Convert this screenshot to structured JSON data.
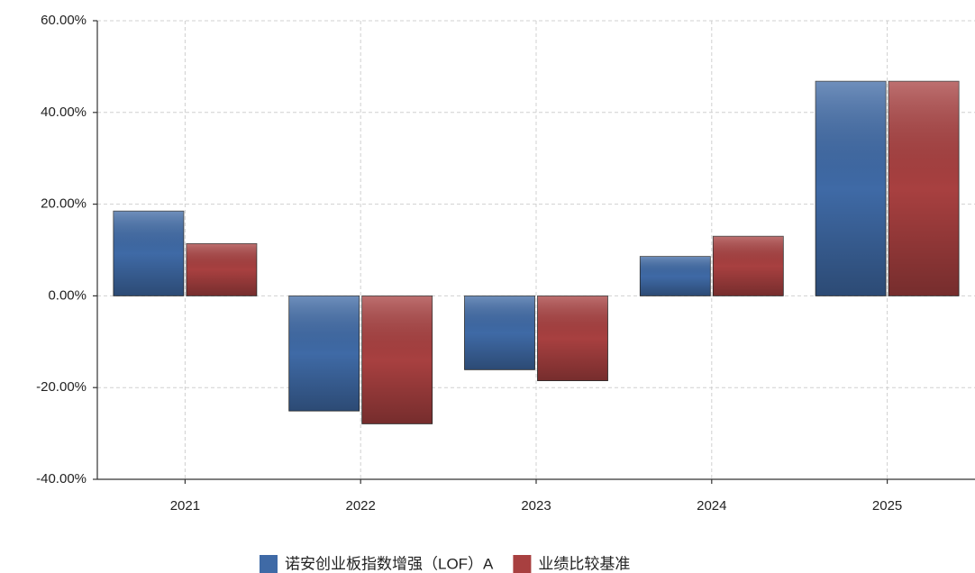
{
  "chart_data": {
    "type": "bar",
    "categories": [
      "2021",
      "2022",
      "2023",
      "2024",
      "2025"
    ],
    "series": [
      {
        "name": "诺安创业板指数增强（LOF）A",
        "color": "#3f6aa6",
        "values": [
          18.5,
          -25.1,
          -16.1,
          8.6,
          46.8
        ]
      },
      {
        "name": "业绩比较基准",
        "color": "#a84040",
        "values": [
          11.4,
          -27.9,
          -18.5,
          13.0,
          46.8
        ]
      }
    ],
    "ylim": [
      -40,
      60
    ],
    "yticks": [
      {
        "value": -40,
        "label": "-40.00%"
      },
      {
        "value": -20,
        "label": "-20.00%"
      },
      {
        "value": 0,
        "label": "0.00%"
      },
      {
        "value": 20,
        "label": "20.00%"
      },
      {
        "value": 40,
        "label": "40.00%"
      },
      {
        "value": 60,
        "label": "60.00%"
      }
    ],
    "grid": true,
    "legend": "bottom"
  }
}
